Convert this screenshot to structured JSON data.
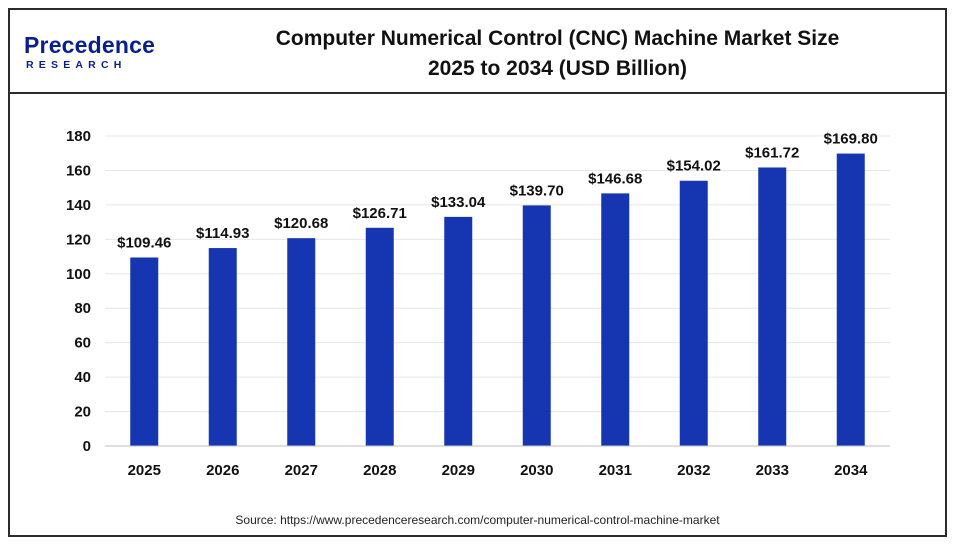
{
  "logo": {
    "name": "Precedence",
    "sub": "RESEARCH"
  },
  "chart_data": {
    "type": "bar",
    "title": "Computer Numerical Control (CNC) Machine Market Size",
    "subtitle": "2025 to 2034 (USD Billion)",
    "categories": [
      "2025",
      "2026",
      "2027",
      "2028",
      "2029",
      "2030",
      "2031",
      "2032",
      "2033",
      "2034"
    ],
    "values": [
      109.46,
      114.93,
      120.68,
      126.71,
      133.04,
      139.7,
      146.68,
      154.02,
      161.72,
      169.8
    ],
    "data_labels": [
      "$109.46",
      "$114.93",
      "$120.68",
      "$126.71",
      "$133.04",
      "$139.70",
      "$146.68",
      "$154.02",
      "$161.72",
      "$169.80"
    ],
    "yticks": [
      0,
      20,
      40,
      60,
      80,
      100,
      120,
      140,
      160,
      180
    ],
    "ylim": [
      0,
      180
    ],
    "xlabel": "",
    "ylabel": "",
    "grid": true,
    "bar_color": "#1536b0"
  },
  "source": "Source: https://www.precedenceresearch.com/computer-numerical-control-machine-market"
}
